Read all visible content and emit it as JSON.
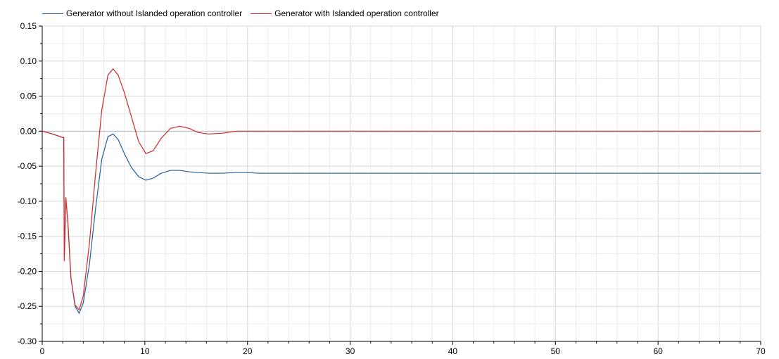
{
  "chart_data": {
    "type": "line",
    "title": "",
    "xlabel": "",
    "ylabel": "",
    "xlim": [
      0,
      70
    ],
    "ylim": [
      -0.3,
      0.15
    ],
    "grid": true,
    "legend_position": "top-left",
    "x_ticks": [
      "0",
      "10",
      "20",
      "30",
      "40",
      "50",
      "60",
      "70"
    ],
    "y_ticks": [
      "0.15",
      "0.10",
      "0.05",
      "0.00",
      "-0.05",
      "-0.10",
      "-0.15",
      "-0.20",
      "-0.25",
      "-0.30"
    ],
    "series": [
      {
        "name": "Generator without Islanded operation controller",
        "color": "#1f5fa0",
        "x": [
          0,
          1,
          2,
          2.1,
          2.15,
          2.3,
          2.5,
          2.8,
          3.2,
          3.6,
          4.0,
          4.6,
          5.2,
          5.8,
          6.4,
          6.9,
          7.4,
          8.0,
          8.7,
          9.4,
          10.1,
          10.8,
          11.6,
          12.5,
          13.4,
          14.3,
          15.2,
          16.2,
          17.5,
          19,
          20,
          21,
          25,
          30,
          40,
          50,
          60,
          70
        ],
        "y": [
          0.0,
          -0.004,
          -0.009,
          -0.009,
          -0.18,
          -0.095,
          -0.13,
          -0.21,
          -0.25,
          -0.26,
          -0.245,
          -0.19,
          -0.11,
          -0.04,
          -0.008,
          -0.004,
          -0.012,
          -0.032,
          -0.052,
          -0.065,
          -0.07,
          -0.067,
          -0.06,
          -0.056,
          -0.056,
          -0.058,
          -0.059,
          -0.06,
          -0.06,
          -0.059,
          -0.059,
          -0.06,
          -0.06,
          -0.06,
          -0.06,
          -0.06,
          -0.06,
          -0.06
        ]
      },
      {
        "name": "Generator with Islanded operation controller",
        "color": "#d62728",
        "x": [
          0,
          1,
          2,
          2.1,
          2.15,
          2.3,
          2.5,
          2.8,
          3.2,
          3.6,
          4.0,
          4.6,
          5.2,
          5.8,
          6.4,
          6.9,
          7.4,
          8.0,
          8.7,
          9.4,
          10.1,
          10.8,
          11.6,
          12.5,
          13.4,
          14.3,
          15.2,
          16.2,
          17.5,
          19,
          20,
          21,
          25,
          30,
          40,
          50,
          60,
          70
        ],
        "y": [
          0.0,
          -0.004,
          -0.009,
          -0.009,
          -0.185,
          -0.095,
          -0.13,
          -0.21,
          -0.248,
          -0.255,
          -0.235,
          -0.16,
          -0.06,
          0.03,
          0.08,
          0.089,
          0.08,
          0.055,
          0.02,
          -0.015,
          -0.032,
          -0.028,
          -0.01,
          0.004,
          0.007,
          0.004,
          -0.002,
          -0.004,
          -0.003,
          0.0,
          0.0,
          0.0,
          0.0,
          0.0,
          0.0,
          0.0,
          0.0,
          0.0
        ]
      }
    ]
  }
}
